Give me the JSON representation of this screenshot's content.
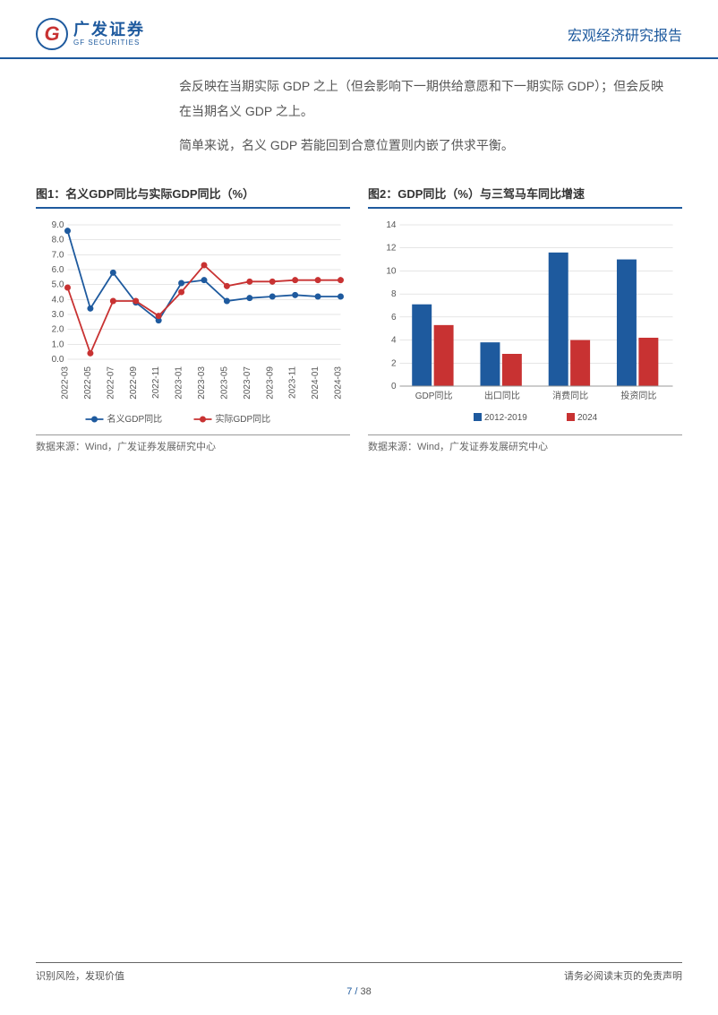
{
  "header": {
    "logo_cn": "广发证券",
    "logo_en": "GF SECURITIES",
    "report_type": "宏观经济研究报告"
  },
  "body": {
    "para1": "会反映在当期实际 GDP 之上（但会影响下一期供给意愿和下一期实际 GDP）；但会反映在当期名义 GDP 之上。",
    "para2": "简单来说，名义 GDP 若能回到合意位置则内嵌了供求平衡。"
  },
  "chart1": {
    "title": "图1：名义GDP同比与实际GDP同比（%）",
    "type": "line",
    "source": "数据来源：Wind，广发证券发展研究中心",
    "x_labels": [
      "2022-03",
      "2022-05",
      "2022-07",
      "2022-09",
      "2022-11",
      "2023-01",
      "2023-03",
      "2023-05",
      "2023-07",
      "2023-09",
      "2023-11",
      "2024-01",
      "2024-03"
    ],
    "ylim": [
      0,
      9
    ],
    "ytick_step": 1,
    "yticks": [
      "0.0",
      "1.0",
      "2.0",
      "3.0",
      "4.0",
      "5.0",
      "6.0",
      "7.0",
      "8.0",
      "9.0"
    ],
    "series": [
      {
        "name": "名义GDP同比",
        "color": "#1e5a9e",
        "marker": "circle",
        "values": [
          8.6,
          3.4,
          5.8,
          3.8,
          2.6,
          5.1,
          5.3,
          3.9,
          4.1,
          4.2,
          4.3,
          4.2,
          4.2
        ]
      },
      {
        "name": "实际GDP同比",
        "color": "#c83232",
        "marker": "circle",
        "values": [
          4.8,
          0.4,
          3.9,
          3.9,
          2.9,
          4.5,
          6.3,
          4.9,
          5.2,
          5.2,
          5.3,
          5.3,
          5.3
        ]
      }
    ],
    "title_fontsize": 13,
    "axis_fontsize": 10,
    "legend_fontsize": 10,
    "line_width": 1.8,
    "marker_size": 3.5,
    "background_color": "#ffffff",
    "grid_color": "#cccccc"
  },
  "chart2": {
    "title": "图2：GDP同比（%）与三驾马车同比增速",
    "type": "bar",
    "source": "数据来源：Wind，广发证券发展研究中心",
    "categories": [
      "GDP同比",
      "出口同比",
      "消费同比",
      "投资同比"
    ],
    "ylim": [
      0,
      14
    ],
    "ytick_step": 2,
    "yticks": [
      "0",
      "2",
      "4",
      "6",
      "8",
      "10",
      "12",
      "14"
    ],
    "series": [
      {
        "name": "2012-2019",
        "color": "#1e5a9e",
        "values": [
          7.1,
          3.8,
          11.6,
          11.0
        ]
      },
      {
        "name": "2024",
        "color": "#c83232",
        "values": [
          5.3,
          2.8,
          4.0,
          4.2
        ]
      }
    ],
    "title_fontsize": 13,
    "axis_fontsize": 10,
    "legend_fontsize": 10,
    "bar_width": 0.32,
    "background_color": "#ffffff",
    "grid_color": "#cccccc"
  },
  "footer": {
    "left": "识别风险，发现价值",
    "right": "请务必阅读末页的免责声明",
    "page_current": "7",
    "page_sep": " / ",
    "page_total": "38"
  }
}
